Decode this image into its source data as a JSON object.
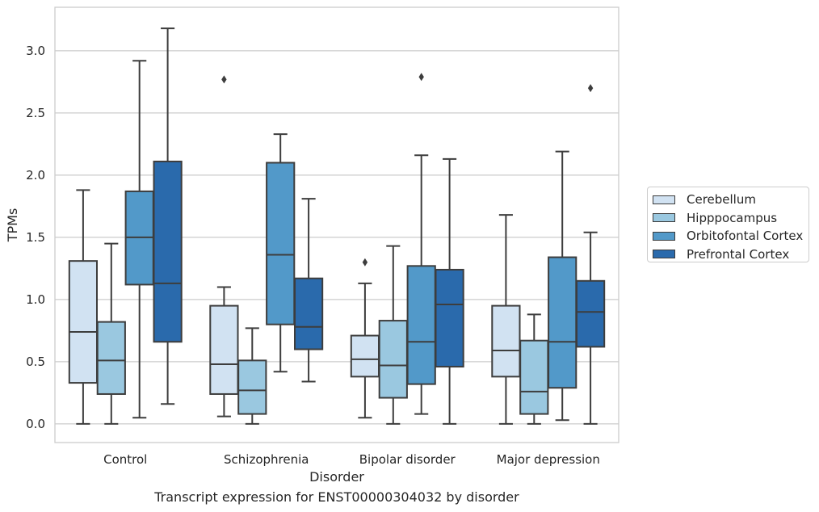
{
  "chart_data": {
    "type": "box",
    "xlabel": "Disorder",
    "ylabel": "TPMs",
    "caption": "Transcript expression for ENST00000304032 by disorder",
    "ylim": [
      -0.15,
      3.35
    ],
    "yticks": [
      0.0,
      0.5,
      1.0,
      1.5,
      2.0,
      2.5,
      3.0
    ],
    "ytick_labels": [
      "0.0",
      "0.5",
      "1.0",
      "1.5",
      "2.0",
      "2.5",
      "3.0"
    ],
    "grid": "horizontal",
    "legend_position": "center-right outside",
    "categories": [
      "Control",
      "Schizophrenia",
      "Bipolar disorder",
      "Major depression"
    ],
    "series": [
      {
        "name": "Cerebellum",
        "color": "#d1e2f2",
        "boxes": [
          {
            "whislo": 0.0,
            "q1": 0.33,
            "med": 0.74,
            "q3": 1.31,
            "whishi": 1.88,
            "fliers": []
          },
          {
            "whislo": 0.06,
            "q1": 0.24,
            "med": 0.48,
            "q3": 0.95,
            "whishi": 1.1,
            "fliers": [
              2.77
            ]
          },
          {
            "whislo": 0.05,
            "q1": 0.38,
            "med": 0.52,
            "q3": 0.71,
            "whishi": 1.13,
            "fliers": [
              1.3
            ]
          },
          {
            "whislo": 0.0,
            "q1": 0.38,
            "med": 0.59,
            "q3": 0.95,
            "whishi": 1.68,
            "fliers": []
          }
        ]
      },
      {
        "name": "Hipppocampus",
        "color": "#9ac8e0",
        "boxes": [
          {
            "whislo": 0.0,
            "q1": 0.24,
            "med": 0.51,
            "q3": 0.82,
            "whishi": 1.45,
            "fliers": []
          },
          {
            "whislo": 0.0,
            "q1": 0.08,
            "med": 0.27,
            "q3": 0.51,
            "whishi": 0.77,
            "fliers": []
          },
          {
            "whislo": 0.0,
            "q1": 0.21,
            "med": 0.47,
            "q3": 0.83,
            "whishi": 1.43,
            "fliers": []
          },
          {
            "whislo": 0.0,
            "q1": 0.08,
            "med": 0.26,
            "q3": 0.67,
            "whishi": 0.88,
            "fliers": []
          }
        ]
      },
      {
        "name": "Orbitofontal Cortex",
        "color": "#5299c9",
        "boxes": [
          {
            "whislo": 0.05,
            "q1": 1.12,
            "med": 1.5,
            "q3": 1.87,
            "whishi": 2.92,
            "fliers": []
          },
          {
            "whislo": 0.42,
            "q1": 0.8,
            "med": 1.36,
            "q3": 2.1,
            "whishi": 2.33,
            "fliers": []
          },
          {
            "whislo": 0.08,
            "q1": 0.32,
            "med": 0.66,
            "q3": 1.27,
            "whishi": 2.16,
            "fliers": [
              2.79
            ]
          },
          {
            "whislo": 0.03,
            "q1": 0.29,
            "med": 0.66,
            "q3": 1.34,
            "whishi": 2.19,
            "fliers": []
          }
        ]
      },
      {
        "name": "Prefrontal Cortex",
        "color": "#2a6aac",
        "boxes": [
          {
            "whislo": 0.16,
            "q1": 0.66,
            "med": 1.13,
            "q3": 2.11,
            "whishi": 3.18,
            "fliers": []
          },
          {
            "whislo": 0.34,
            "q1": 0.6,
            "med": 0.78,
            "q3": 1.17,
            "whishi": 1.81,
            "fliers": []
          },
          {
            "whislo": 0.0,
            "q1": 0.46,
            "med": 0.96,
            "q3": 1.24,
            "whishi": 2.13,
            "fliers": []
          },
          {
            "whislo": 0.0,
            "q1": 0.62,
            "med": 0.9,
            "q3": 1.15,
            "whishi": 1.54,
            "fliers": [
              2.7
            ]
          }
        ]
      }
    ]
  }
}
